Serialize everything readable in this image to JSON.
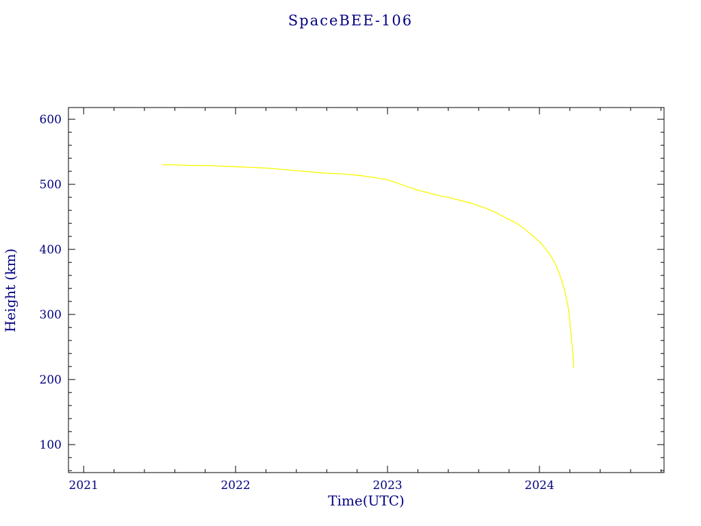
{
  "chart_data": {
    "type": "line",
    "title": "SpaceBEE-106",
    "xlabel": "Time(UTC)",
    "ylabel": "Height (km)",
    "xlim": [
      2020.9,
      2024.82
    ],
    "ylim": [
      57,
      618
    ],
    "x_ticks": [
      2021,
      2022,
      2023,
      2024
    ],
    "y_ticks": [
      100,
      200,
      300,
      400,
      500,
      600
    ],
    "x_minor_step": 0.2,
    "y_minor_step": 20,
    "grid": false,
    "legend": null,
    "line_color": "#f7f700",
    "axis_color": "#000000",
    "text_color": "#000080",
    "series": [
      {
        "name": "SpaceBEE-106 height",
        "x": [
          2021.52,
          2021.6,
          2021.7,
          2021.8,
          2021.9,
          2022.0,
          2022.1,
          2022.2,
          2022.3,
          2022.4,
          2022.5,
          2022.6,
          2022.7,
          2022.8,
          2022.9,
          2023.0,
          2023.05,
          2023.1,
          2023.15,
          2023.2,
          2023.25,
          2023.3,
          2023.35,
          2023.4,
          2023.45,
          2023.5,
          2023.55,
          2023.6,
          2023.65,
          2023.7,
          2023.75,
          2023.8,
          2023.85,
          2023.9,
          2023.95,
          2024.0,
          2024.05,
          2024.08,
          2024.11,
          2024.13,
          2024.15,
          2024.17,
          2024.19,
          2024.2,
          2024.21,
          2024.22,
          2024.225
        ],
        "y": [
          530,
          530,
          529,
          529,
          528,
          527,
          526,
          525,
          523,
          521,
          519,
          517,
          516,
          514,
          511,
          507,
          503,
          499,
          495,
          491,
          488,
          485,
          482,
          480,
          477,
          474,
          471,
          467,
          463,
          458,
          452,
          446,
          440,
          432,
          422,
          412,
          398,
          388,
          375,
          363,
          350,
          333,
          310,
          290,
          265,
          240,
          218
        ]
      }
    ]
  }
}
